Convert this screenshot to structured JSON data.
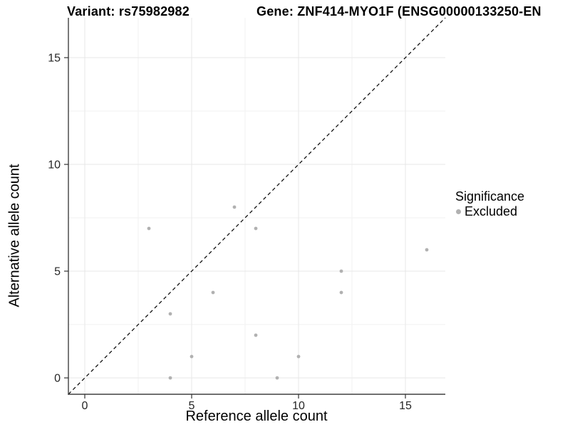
{
  "colors": {
    "point": "#b1b1b1",
    "grid_major": "#e7e7e7",
    "grid_minor": "#f2f2f2",
    "axis_line": "#404040",
    "tick_mark": "#333333",
    "tick_label": "#262626",
    "identity_line": "#000000"
  },
  "chart_data": {
    "type": "scatter",
    "titles": [
      "Variant: rs75982982",
      "Gene: ZNF414-MYO1F (ENSG00000133250-EN"
    ],
    "xlabel": "Reference allele count",
    "ylabel": "Alternative allele count",
    "x_ticks": [
      0,
      5,
      10,
      15
    ],
    "y_ticks": [
      0,
      5,
      10,
      15
    ],
    "minor_gridlines": [
      2.5,
      7.5,
      12.5
    ],
    "xlim": [
      -0.8,
      16.9
    ],
    "ylim": [
      -0.8,
      16.9
    ],
    "grid": true,
    "identity_line": {
      "style": "dashed",
      "slope": 1,
      "intercept": 0
    },
    "legend": {
      "title": "Significance",
      "position": "right"
    },
    "series": [
      {
        "name": "Excluded",
        "color": "#b1b1b1",
        "points": [
          [
            3,
            7
          ],
          [
            4,
            0
          ],
          [
            4,
            3
          ],
          [
            5,
            1
          ],
          [
            6,
            4
          ],
          [
            7,
            8
          ],
          [
            8,
            2
          ],
          [
            8,
            7
          ],
          [
            9,
            0
          ],
          [
            10,
            1
          ],
          [
            12,
            4
          ],
          [
            12,
            5
          ],
          [
            16,
            6
          ]
        ]
      }
    ]
  }
}
